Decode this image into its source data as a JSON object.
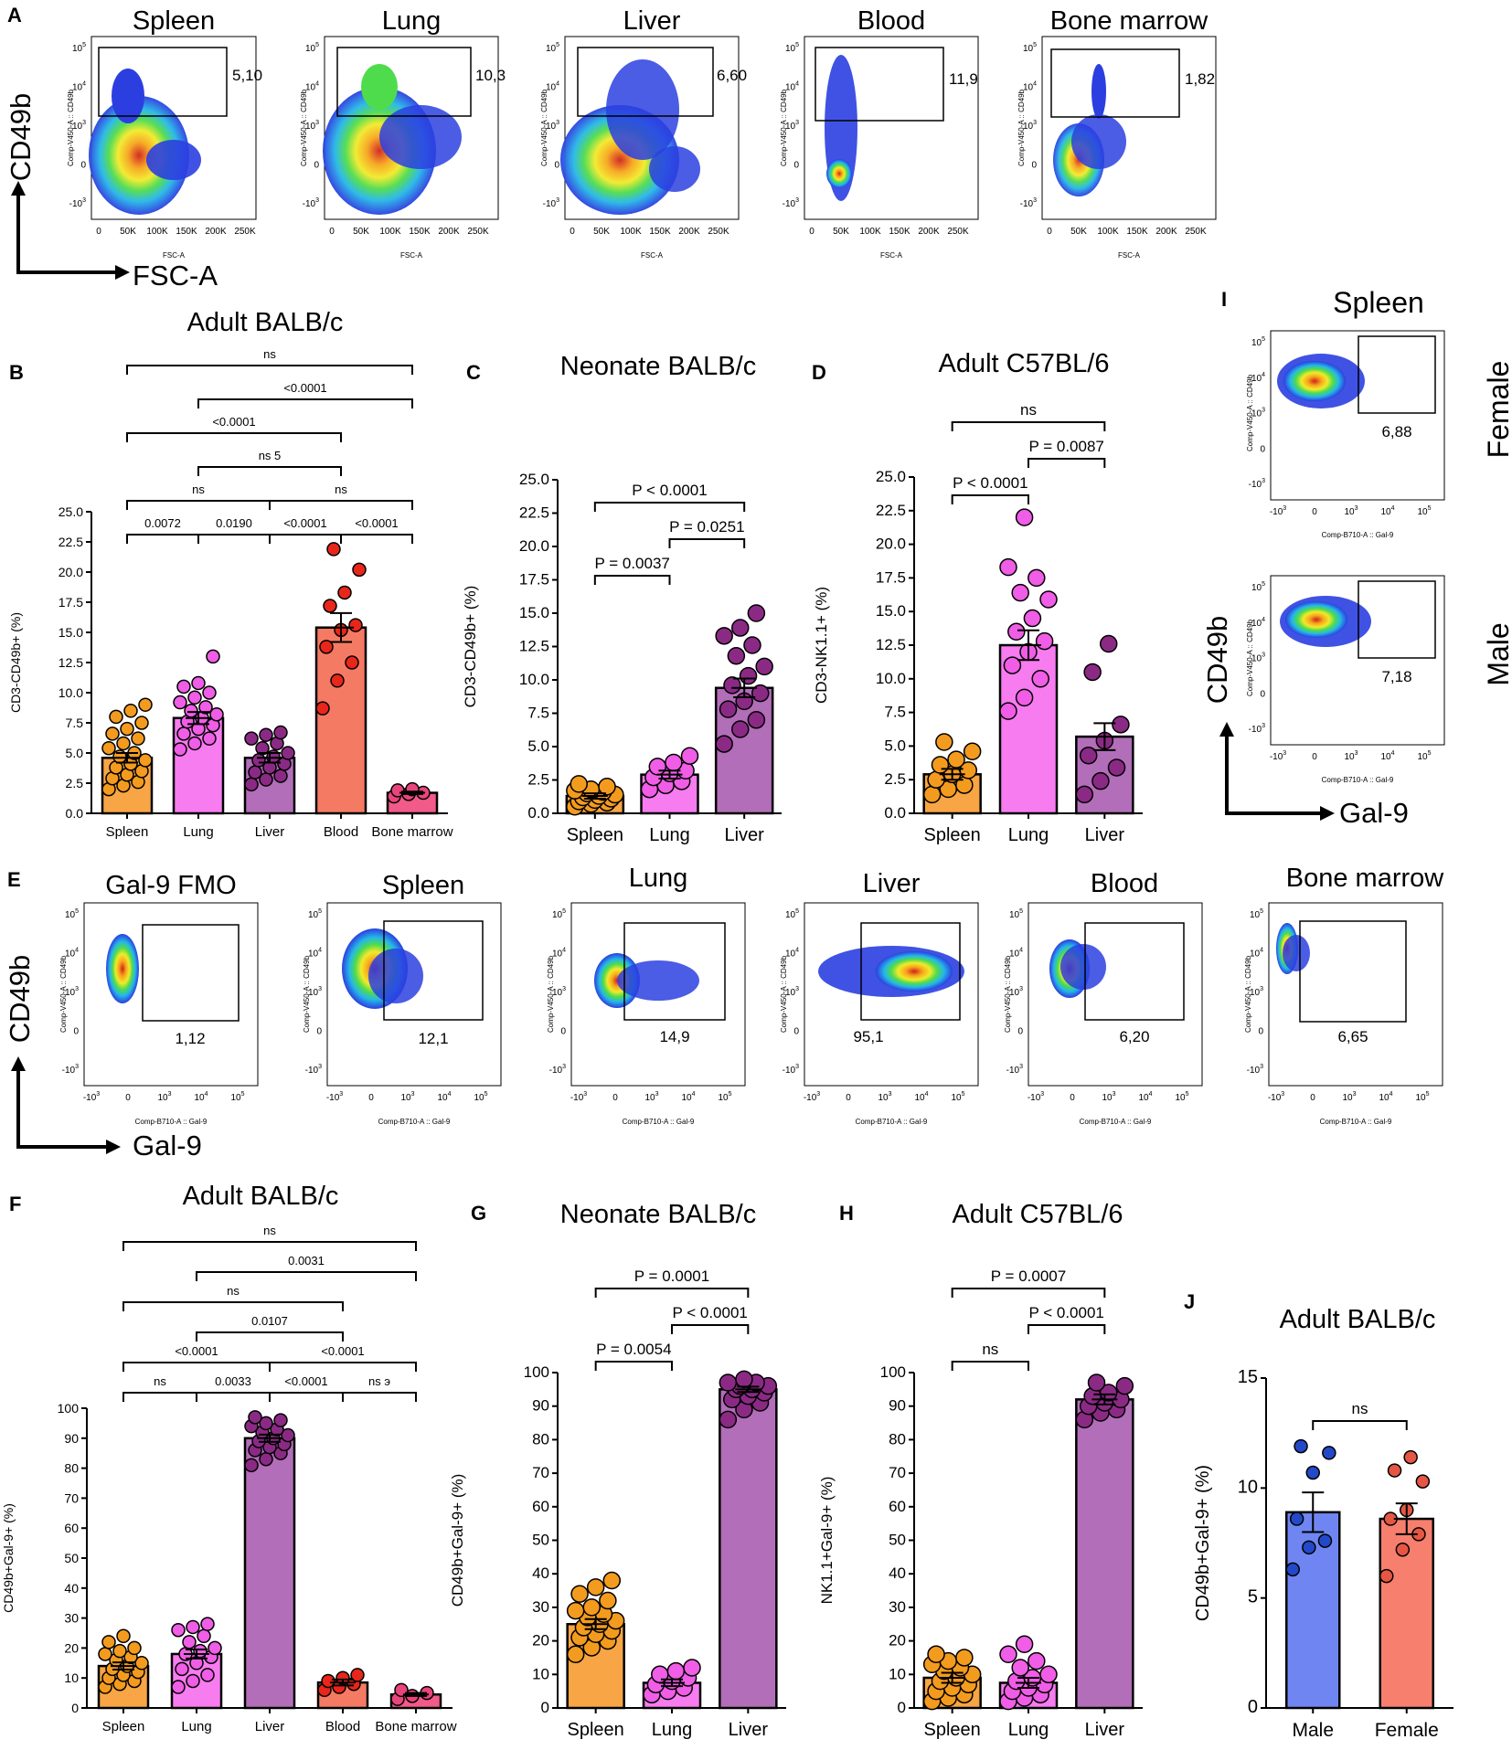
{
  "colors": {
    "spleen": "#F7A545",
    "lung": "#F77CF0",
    "liver": "#B26EB8",
    "blood": "#F57A63",
    "bone_marrow": "#F25A8A",
    "male": "#6F86F2",
    "female": "#F77F6E",
    "spleen_dot": "#F39B1E",
    "lung_dot": "#F05DE6",
    "liver_dot": "#8B2A85",
    "blood_dot": "#E8261A",
    "bm_dot": "#E9457C",
    "male_dot": "#2349C8",
    "female_dot": "#E55744"
  },
  "panel_A": {
    "letter": "A",
    "y_label": "CD49b",
    "x_label": "FSC-A",
    "ytick_labels": [
      "10^5",
      "10^4",
      "10^3",
      "0",
      "-10^3"
    ],
    "xtick_labels": [
      "0",
      "50K",
      "100K",
      "150K",
      "200K",
      "250K"
    ],
    "plots": [
      {
        "title": "Spleen",
        "gate": "5,10",
        "axis_y": "Comp-V450-A :: CD49b",
        "axis_x": "FSC-A"
      },
      {
        "title": "Lung",
        "gate": "10,3",
        "axis_y": "Comp-V450-A :: CD49b",
        "axis_x": "FSC-A"
      },
      {
        "title": "Liver",
        "gate": "6,60",
        "axis_y": "Comp-V450-A :: CD49b",
        "axis_x": "FSC-A"
      },
      {
        "title": "Blood",
        "gate": "11,9",
        "axis_y": "Comp-V450-A :: CD49b",
        "axis_x": "FSC-A"
      },
      {
        "title": "Bone marrow",
        "gate": "1,82",
        "axis_y": "Comp-V450-A :: CD49b",
        "axis_x": "FSC-A"
      }
    ]
  },
  "panel_E": {
    "letter": "E",
    "y_label": "CD49b",
    "x_label": "Gal-9",
    "ytick_labels": [
      "10^5",
      "10^4",
      "10^3",
      "0",
      "-10^3"
    ],
    "xtick_labels": [
      "-10^3",
      "0",
      "10^3",
      "10^4",
      "10^5"
    ],
    "plots": [
      {
        "title": "Gal-9 FMO",
        "gate": "1,12",
        "axis_y": "Comp-V450-A :: CD49b",
        "axis_x": "Comp-B710-A :: Gal-9"
      },
      {
        "title": "Spleen",
        "gate": "12,1",
        "axis_y": "Comp-V450-A :: CD49b",
        "axis_x": "Comp-B710-A :: Gal-9"
      },
      {
        "title": "Lung",
        "gate": "14,9",
        "axis_y": "Comp-V450-A :: CD49b",
        "axis_x": "Comp-B710-A :: Gal-9"
      },
      {
        "title": "Liver",
        "gate": "95,1",
        "axis_y": "Comp-V450-A :: CD49b",
        "axis_x": "Comp-B710-A :: Gal-9"
      },
      {
        "title": "Blood",
        "gate": "6,20",
        "axis_y": "Comp-V450-A :: CD49b",
        "axis_x": "Comp-B710-A :: Gal-9"
      },
      {
        "title": "Bone marrow",
        "gate": "6,65",
        "axis_y": "Comp-V450-A :: CD49b",
        "axis_x": "Comp-B710-A :: Gal-9"
      }
    ]
  },
  "panel_I": {
    "letter": "I",
    "title": "Spleen",
    "y_label": "CD49b",
    "x_label": "Gal-9",
    "ytick_labels": [
      "10^5",
      "10^4",
      "10^3",
      "0",
      "-10^3"
    ],
    "xtick_labels": [
      "-10^3",
      "0",
      "10^3",
      "10^4",
      "10^5"
    ],
    "plots": [
      {
        "side_label": "Female",
        "gate": "6,88",
        "axis_y": "Comp-V450-A :: CD49b",
        "axis_x": "Comp-B710-A :: Gal-9"
      },
      {
        "side_label": "Male",
        "gate": "7,18",
        "axis_y": "Comp-V450-A :: CD49b",
        "axis_x": "Comp-B710-A :: Gal-9"
      }
    ]
  },
  "chart_data": [
    {
      "id": "B",
      "type": "bar",
      "title": "Adult BALB/c",
      "categories": [
        "Spleen",
        "Lung",
        "Liver",
        "Blood",
        "Bone marrow"
      ],
      "values": [
        4.6,
        7.9,
        4.6,
        15.4,
        1.7
      ],
      "sem": [
        0.4,
        0.5,
        0.4,
        1.2,
        0.1
      ],
      "points": [
        [
          2.0,
          2.3,
          2.6,
          2.9,
          3.2,
          3.5,
          3.8,
          4.1,
          4.4,
          4.7,
          5.0,
          5.4,
          5.8,
          6.2,
          6.6,
          7.0,
          7.5,
          8.0,
          8.5,
          9.0
        ],
        [
          5.3,
          5.8,
          6.2,
          6.6,
          7.0,
          7.3,
          7.6,
          7.9,
          8.2,
          8.5,
          8.8,
          9.2,
          9.6,
          10.0,
          10.5,
          10.8,
          13.0
        ],
        [
          2.4,
          2.8,
          3.1,
          3.4,
          3.8,
          4.1,
          4.4,
          4.7,
          5.0,
          5.4,
          5.8,
          6.2,
          6.5,
          6.7
        ],
        [
          8.7,
          11.0,
          12.5,
          13.8,
          15.2,
          15.6,
          17.2,
          18.3,
          20.2,
          21.9
        ],
        [
          1.4,
          1.6,
          1.7,
          1.9,
          2.0
        ]
      ],
      "ylabel": "CD3-CD49b+ (%)",
      "ylim": [
        0,
        25
      ],
      "yticks": [
        "0.0",
        "2.5",
        "5.0",
        "7.5",
        "10.0",
        "12.5",
        "15.0",
        "17.5",
        "20.0",
        "22.5",
        "25.0"
      ],
      "comparisons": [
        {
          "from": 0,
          "to": 1,
          "label": "0.0072",
          "level": 0
        },
        {
          "from": 1,
          "to": 2,
          "label": "0.0190",
          "level": 0
        },
        {
          "from": 2,
          "to": 3,
          "label": "<0.0001",
          "level": 0
        },
        {
          "from": 3,
          "to": 4,
          "label": "<0.0001",
          "level": 0
        },
        {
          "from": 0,
          "to": 2,
          "label": "ns",
          "level": 1
        },
        {
          "from": 2,
          "to": 4,
          "label": "ns",
          "level": 1
        },
        {
          "from": 1,
          "to": 3,
          "label": "ns      5",
          "level": 2
        },
        {
          "from": 0,
          "to": 3,
          "label": "<0.0001",
          "level": 3
        },
        {
          "from": 1,
          "to": 4,
          "label": "<0.0001",
          "level": 4
        },
        {
          "from": 0,
          "to": 4,
          "label": "ns",
          "level": 5
        }
      ]
    },
    {
      "id": "C",
      "type": "bar",
      "title": "Neonate BALB/c",
      "categories": [
        "Spleen",
        "Lung",
        "Liver"
      ],
      "values": [
        1.3,
        2.9,
        9.4
      ],
      "sem": [
        0.2,
        0.3,
        0.7
      ],
      "points": [
        [
          0.5,
          0.7,
          0.8,
          0.9,
          1.0,
          1.1,
          1.2,
          1.3,
          1.4,
          1.5,
          1.6,
          1.7,
          1.8,
          2.0,
          2.2
        ],
        [
          1.8,
          2.1,
          2.4,
          2.7,
          3.0,
          3.2,
          3.5,
          3.8,
          4.3
        ],
        [
          5.2,
          6.3,
          7.0,
          7.8,
          8.4,
          9.0,
          9.6,
          10.3,
          11.0,
          11.8,
          12.6,
          13.3,
          13.9,
          15.0
        ]
      ],
      "ylabel": "CD3-CD49b+ (%)",
      "ylim": [
        0,
        25
      ],
      "yticks": [
        "0.0",
        "2.5",
        "5.0",
        "7.5",
        "10.0",
        "12.5",
        "15.0",
        "17.5",
        "20.0",
        "22.5",
        "25.0"
      ],
      "comparisons": [
        {
          "from": 0,
          "to": 1,
          "label": "P = 0.0037",
          "level": 0
        },
        {
          "from": 1,
          "to": 2,
          "label": "P = 0.0251",
          "level": 1
        },
        {
          "from": 0,
          "to": 2,
          "label": "P < 0.0001",
          "level": 2
        }
      ]
    },
    {
      "id": "D",
      "type": "bar",
      "title": "Adult C57BL/6",
      "categories": [
        "Spleen",
        "Lung",
        "Liver"
      ],
      "values": [
        2.9,
        12.5,
        5.7
      ],
      "sem": [
        0.4,
        1.1,
        1.0
      ],
      "points": [
        [
          1.4,
          1.8,
          2.1,
          2.5,
          2.9,
          3.2,
          3.6,
          4.0,
          4.6,
          5.3
        ],
        [
          7.6,
          8.6,
          10.0,
          11.0,
          12.0,
          12.8,
          13.5,
          14.5,
          15.9,
          16.4,
          17.5,
          18.3,
          22.0
        ],
        [
          1.4,
          2.4,
          3.4,
          4.3,
          5.4,
          6.6,
          10.5,
          12.6
        ]
      ],
      "ylabel": "CD3-NK1.1+ (%)",
      "ylim": [
        0,
        25
      ],
      "yticks": [
        "0.0",
        "2.5",
        "5.0",
        "7.5",
        "10.0",
        "12.5",
        "15.0",
        "17.5",
        "20.0",
        "22.5",
        "25.0"
      ],
      "comparisons": [
        {
          "from": 0,
          "to": 1,
          "label": "P < 0.0001",
          "level": 0
        },
        {
          "from": 1,
          "to": 2,
          "label": "P = 0.0087",
          "level": 1
        },
        {
          "from": 0,
          "to": 2,
          "label": "ns",
          "level": 2
        }
      ]
    },
    {
      "id": "F",
      "type": "bar",
      "title": "Adult BALB/c",
      "categories": [
        "Spleen",
        "Lung",
        "Liver",
        "Blood",
        "Bone marrow"
      ],
      "values": [
        14.0,
        18.0,
        90.0,
        8.5,
        4.5
      ],
      "sem": [
        1.2,
        1.5,
        1.2,
        1.0,
        0.5
      ],
      "points": [
        [
          7,
          8,
          9,
          10,
          11,
          12,
          13,
          14,
          15,
          16,
          17,
          18,
          19,
          20,
          22,
          24
        ],
        [
          7,
          9,
          11,
          13,
          15,
          17,
          18,
          19,
          20,
          22,
          24,
          26,
          27,
          28
        ],
        [
          81,
          83,
          85,
          86,
          87,
          88,
          89,
          90,
          91,
          92,
          93,
          94,
          95,
          96,
          97
        ],
        [
          6,
          7,
          8,
          9,
          10,
          11
        ],
        [
          3,
          4,
          5,
          6
        ]
      ],
      "ylabel": "CD49b+Gal-9+ (%)",
      "ylim": [
        0,
        100
      ],
      "yticks": [
        "0",
        "10",
        "20",
        "30",
        "40",
        "50",
        "60",
        "70",
        "80",
        "90",
        "100"
      ],
      "comparisons": [
        {
          "from": 0,
          "to": 1,
          "label": "ns",
          "level": 0
        },
        {
          "from": 1,
          "to": 2,
          "label": "0.0033",
          "level": 0
        },
        {
          "from": 2,
          "to": 3,
          "label": "<0.0001",
          "level": 0
        },
        {
          "from": 3,
          "to": 4,
          "label": "ns      э",
          "level": 0
        },
        {
          "from": 0,
          "to": 2,
          "label": "<0.0001",
          "level": 1
        },
        {
          "from": 2,
          "to": 4,
          "label": "<0.0001",
          "level": 1
        },
        {
          "from": 1,
          "to": 3,
          "label": "0.0107",
          "level": 2
        },
        {
          "from": 0,
          "to": 3,
          "label": "ns",
          "level": 3
        },
        {
          "from": 1,
          "to": 4,
          "label": "0.0031",
          "level": 4
        },
        {
          "from": 0,
          "to": 4,
          "label": "ns",
          "level": 5
        }
      ]
    },
    {
      "id": "G",
      "type": "bar",
      "title": "Neonate BALB/c",
      "categories": [
        "Spleen",
        "Lung",
        "Liver"
      ],
      "values": [
        25.0,
        7.5,
        95.0
      ],
      "sem": [
        1.5,
        1.0,
        0.8
      ],
      "points": [
        [
          16,
          18,
          20,
          21,
          22,
          23,
          24,
          25,
          26,
          27,
          28,
          29,
          30,
          32,
          34,
          36,
          38
        ],
        [
          4,
          5,
          6,
          7,
          8,
          9,
          10,
          11,
          12
        ],
        [
          86,
          89,
          91,
          92,
          93,
          94,
          95,
          95,
          96,
          96,
          97,
          97,
          98
        ]
      ],
      "ylabel": "CD49b+Gal-9+ (%)",
      "ylim": [
        0,
        100
      ],
      "yticks": [
        "0",
        "10",
        "20",
        "30",
        "40",
        "50",
        "60",
        "70",
        "80",
        "90",
        "100"
      ],
      "comparisons": [
        {
          "from": 0,
          "to": 1,
          "label": "P = 0.0054",
          "level": 0
        },
        {
          "from": 1,
          "to": 2,
          "label": "P < 0.0001",
          "level": 1
        },
        {
          "from": 0,
          "to": 2,
          "label": "P = 0.0001",
          "level": 2
        }
      ]
    },
    {
      "id": "H",
      "type": "bar",
      "title": "Adult C57BL/6",
      "categories": [
        "Spleen",
        "Lung",
        "Liver"
      ],
      "values": [
        9.0,
        7.5,
        92.0
      ],
      "sem": [
        1.5,
        1.5,
        1.5
      ],
      "points": [
        [
          2,
          3,
          4,
          5,
          6,
          7,
          8,
          9,
          10,
          11,
          12,
          13,
          14,
          15,
          16
        ],
        [
          2,
          3,
          4,
          5,
          6,
          7,
          8,
          9,
          10,
          12,
          14,
          16,
          19
        ],
        [
          86,
          88,
          89,
          90,
          91,
          92,
          93,
          94,
          96,
          97
        ]
      ],
      "ylabel": "NK1.1+Gal-9+ (%)",
      "ylim": [
        0,
        100
      ],
      "yticks": [
        "0",
        "10",
        "20",
        "30",
        "40",
        "50",
        "60",
        "70",
        "80",
        "90",
        "100"
      ],
      "comparisons": [
        {
          "from": 0,
          "to": 1,
          "label": "ns",
          "level": 0
        },
        {
          "from": 1,
          "to": 2,
          "label": "P < 0.0001",
          "level": 1
        },
        {
          "from": 0,
          "to": 2,
          "label": "P = 0.0007",
          "level": 2
        }
      ]
    },
    {
      "id": "J",
      "type": "bar",
      "title": "Adult BALB/c",
      "categories": [
        "Male",
        "Female"
      ],
      "values": [
        8.9,
        8.6
      ],
      "sem": [
        0.9,
        0.7
      ],
      "points": [
        [
          6.3,
          7.3,
          7.6,
          8.6,
          10.7,
          11.6,
          11.9
        ],
        [
          6.0,
          7.2,
          7.9,
          8.6,
          9.0,
          10.3,
          10.8,
          11.4
        ]
      ],
      "ylabel": "CD49b+Gal-9+ (%)",
      "ylim": [
        0,
        15
      ],
      "yticks": [
        "0",
        "5",
        "10",
        "15"
      ],
      "comparisons": [
        {
          "from": 0,
          "to": 1,
          "label": "ns",
          "level": 0
        }
      ]
    }
  ]
}
